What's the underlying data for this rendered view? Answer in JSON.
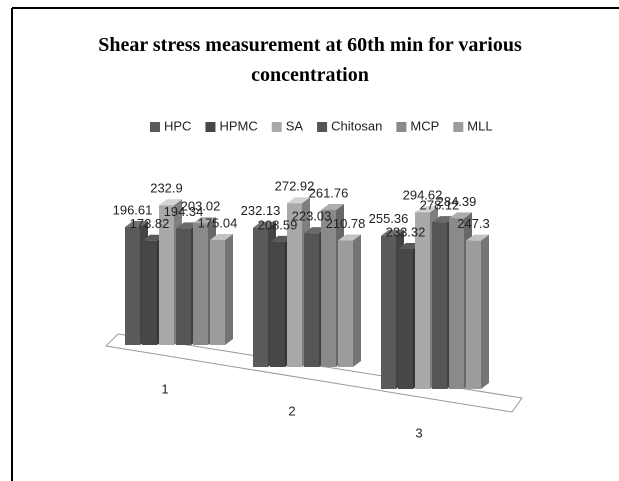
{
  "chart_data": {
    "type": "bar3d",
    "title": "Shear stress measurement at 60th min for various concentration",
    "categories": [
      "1",
      "2",
      "3"
    ],
    "series": [
      {
        "name": "HPC",
        "color": "#5a5a5a",
        "values": [
          196.61,
          232.13,
          255.36
        ]
      },
      {
        "name": "HPMC",
        "color": "#474747",
        "values": [
          173.82,
          208.59,
          233.32
        ]
      },
      {
        "name": "SA",
        "color": "#a9a9a9",
        "values": [
          232.9,
          272.92,
          294.62
        ]
      },
      {
        "name": "Chitosan",
        "color": "#555555",
        "values": [
          194.34,
          223.03,
          278.12
        ]
      },
      {
        "name": "MCP",
        "color": "#8a8a8a",
        "values": [
          203.02,
          261.76,
          284.39
        ]
      },
      {
        "name": "MLL",
        "color": "#9c9c9c",
        "values": [
          175.04,
          210.78,
          247.3
        ]
      }
    ],
    "legend": "top"
  }
}
